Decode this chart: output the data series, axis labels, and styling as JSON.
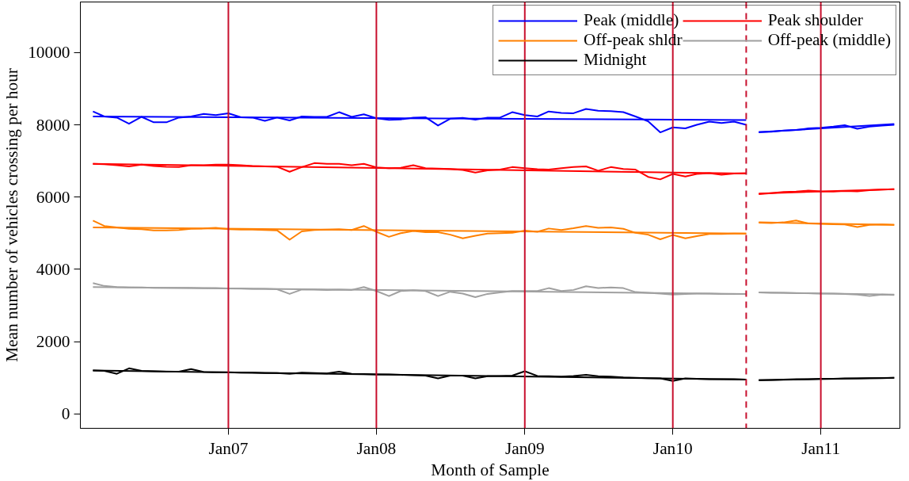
{
  "chart_data": {
    "type": "line",
    "xlabel": "Month of Sample",
    "ylabel": "Mean number of vehicles crossing per hour",
    "xlim": [
      "2006-01-01",
      "2011-07-15"
    ],
    "ylim": [
      -400,
      11400
    ],
    "xticks": [
      {
        "value": "2007-01",
        "label": "Jan07"
      },
      {
        "value": "2008-01",
        "label": "Jan08"
      },
      {
        "value": "2009-01",
        "label": "Jan09"
      },
      {
        "value": "2010-01",
        "label": "Jan10"
      },
      {
        "value": "2011-01",
        "label": "Jan11"
      }
    ],
    "yticks": [
      0,
      2000,
      4000,
      6000,
      8000,
      10000
    ],
    "grid": false,
    "legend": "top right",
    "marker": "none",
    "line_style": "solid",
    "ref_lines": [
      {
        "axis": "x",
        "value": "2007-01",
        "color": "#c8102e",
        "line_style": "solid"
      },
      {
        "axis": "x",
        "value": "2008-01",
        "color": "#c8102e",
        "line_style": "solid"
      },
      {
        "axis": "x",
        "value": "2009-01",
        "color": "#c8102e",
        "line_style": "solid"
      },
      {
        "axis": "x",
        "value": "2010-01",
        "color": "#c8102e",
        "line_style": "solid"
      },
      {
        "axis": "x",
        "value": "2010-07",
        "color": "#c8102e",
        "line_style": "dashed"
      },
      {
        "axis": "x",
        "value": "2011-01",
        "color": "#c8102e",
        "line_style": "solid"
      }
    ],
    "series": [
      {
        "name": "Peak (middle)",
        "color": "#0000ff",
        "values": [
          8370,
          8230,
          8200,
          8030,
          8220,
          8070,
          8070,
          8200,
          8230,
          8300,
          8270,
          8320,
          8210,
          8200,
          8110,
          8200,
          8120,
          8230,
          8220,
          8220,
          8350,
          8220,
          8290,
          8180,
          8140,
          8150,
          8200,
          8210,
          7980,
          8170,
          8190,
          8140,
          8200,
          8200,
          8350,
          8270,
          8230,
          8370,
          8330,
          8320,
          8440,
          8390,
          8380,
          8350,
          8230,
          8100,
          7790,
          7930,
          7900,
          8000,
          8090,
          8050,
          8090,
          8000
        ]
      },
      {
        "name": "Peak shoulder",
        "color": "#ff0000",
        "values": [
          6920,
          6910,
          6880,
          6850,
          6900,
          6860,
          6840,
          6830,
          6880,
          6880,
          6900,
          6900,
          6880,
          6860,
          6850,
          6840,
          6700,
          6830,
          6940,
          6920,
          6920,
          6880,
          6920,
          6820,
          6800,
          6810,
          6880,
          6800,
          6790,
          6780,
          6750,
          6680,
          6740,
          6760,
          6830,
          6800,
          6770,
          6760,
          6800,
          6830,
          6850,
          6730,
          6830,
          6780,
          6760,
          6560,
          6490,
          6640,
          6570,
          6640,
          6660,
          6620,
          6650,
          6660
        ]
      },
      {
        "name": "Off-peak shldr",
        "color": "#ff8000",
        "values": [
          5350,
          5200,
          5160,
          5120,
          5110,
          5080,
          5080,
          5090,
          5120,
          5130,
          5150,
          5110,
          5100,
          5100,
          5090,
          5080,
          4820,
          5050,
          5090,
          5100,
          5110,
          5090,
          5200,
          5040,
          4900,
          5000,
          5060,
          5030,
          5030,
          4960,
          4860,
          4930,
          4990,
          5000,
          5010,
          5070,
          5040,
          5130,
          5090,
          5140,
          5200,
          5150,
          5160,
          5120,
          5010,
          4960,
          4830,
          4950,
          4860,
          4920,
          4980,
          4980,
          4990,
          4990
        ]
      },
      {
        "name": "Off-peak (middle)",
        "color": "#a0a0a0",
        "values": [
          3620,
          3540,
          3510,
          3500,
          3500,
          3490,
          3490,
          3490,
          3490,
          3480,
          3480,
          3470,
          3470,
          3460,
          3460,
          3450,
          3320,
          3440,
          3440,
          3430,
          3440,
          3430,
          3510,
          3400,
          3260,
          3400,
          3420,
          3400,
          3260,
          3380,
          3330,
          3230,
          3320,
          3360,
          3400,
          3400,
          3400,
          3480,
          3400,
          3430,
          3530,
          3480,
          3500,
          3480,
          3370,
          3350,
          3330,
          3300,
          3320,
          3330,
          3330,
          3320,
          3320,
          3320
        ]
      },
      {
        "name": "Midnight",
        "color": "#000000",
        "values": [
          1200,
          1190,
          1110,
          1260,
          1190,
          1180,
          1170,
          1170,
          1240,
          1160,
          1150,
          1150,
          1140,
          1140,
          1130,
          1130,
          1110,
          1140,
          1130,
          1120,
          1170,
          1110,
          1100,
          1090,
          1090,
          1080,
          1070,
          1060,
          980,
          1060,
          1060,
          980,
          1040,
          1050,
          1060,
          1180,
          1050,
          1040,
          1030,
          1050,
          1080,
          1040,
          1030,
          1010,
          1000,
          990,
          980,
          910,
          980,
          970,
          960,
          960,
          960,
          950
        ]
      },
      {
        "color": "#0000ff",
        "x": [
          "2010-08",
          "2010-09",
          "2010-10",
          "2010-11",
          "2010-12",
          "2011-01",
          "2011-02",
          "2011-03",
          "2011-04",
          "2011-05",
          "2011-06",
          "2011-07"
        ],
        "values": [
          7800,
          7810,
          7840,
          7860,
          7900,
          7920,
          7950,
          7990,
          7890,
          7950,
          7980,
          8000
        ]
      },
      {
        "color": "#ff0000",
        "x": [
          "2010-08",
          "2010-09",
          "2010-10",
          "2010-11",
          "2010-12",
          "2011-01",
          "2011-02",
          "2011-03",
          "2011-04",
          "2011-05",
          "2011-06",
          "2011-07"
        ],
        "values": [
          6080,
          6110,
          6140,
          6150,
          6180,
          6160,
          6150,
          6170,
          6160,
          6190,
          6210,
          6220
        ]
      },
      {
        "color": "#ff8000",
        "x": [
          "2010-08",
          "2010-09",
          "2010-10",
          "2010-11",
          "2010-12",
          "2011-01",
          "2011-02",
          "2011-03",
          "2011-04",
          "2011-05",
          "2011-06",
          "2011-07"
        ],
        "values": [
          5290,
          5280,
          5300,
          5350,
          5270,
          5260,
          5250,
          5240,
          5170,
          5230,
          5240,
          5230
        ]
      },
      {
        "color": "#a0a0a0",
        "x": [
          "2010-08",
          "2010-09",
          "2010-10",
          "2010-11",
          "2010-12",
          "2011-01",
          "2011-02",
          "2011-03",
          "2011-04",
          "2011-05",
          "2011-06",
          "2011-07"
        ],
        "values": [
          3360,
          3350,
          3350,
          3340,
          3340,
          3330,
          3330,
          3320,
          3300,
          3260,
          3300,
          3290
        ]
      },
      {
        "color": "#000000",
        "x": [
          "2010-08",
          "2010-09",
          "2010-10",
          "2010-11",
          "2010-12",
          "2011-01",
          "2011-02",
          "2011-03",
          "2011-04",
          "2011-05",
          "2011-06",
          "2011-07"
        ],
        "values": [
          930,
          940,
          950,
          960,
          960,
          970,
          970,
          980,
          980,
          990,
          990,
          1000
        ]
      },
      {
        "color": "#0000ff",
        "x": [
          "2006-02",
          "2010-07"
        ],
        "values": [
          8230,
          8130
        ]
      },
      {
        "color": "#0000ff",
        "x": [
          "2010-08",
          "2011-07"
        ],
        "values": [
          7800,
          8020
        ]
      },
      {
        "color": "#ff0000",
        "x": [
          "2006-02",
          "2010-07"
        ],
        "values": [
          6920,
          6650
        ]
      },
      {
        "color": "#ff0000",
        "x": [
          "2010-08",
          "2011-07"
        ],
        "values": [
          6100,
          6220
        ]
      },
      {
        "color": "#ff8000",
        "x": [
          "2006-02",
          "2010-07"
        ],
        "values": [
          5160,
          4990
        ]
      },
      {
        "color": "#ff8000",
        "x": [
          "2010-08",
          "2011-07"
        ],
        "values": [
          5300,
          5230
        ]
      },
      {
        "color": "#a0a0a0",
        "x": [
          "2006-02",
          "2010-07"
        ],
        "values": [
          3510,
          3320
        ]
      },
      {
        "color": "#a0a0a0",
        "x": [
          "2010-08",
          "2011-07"
        ],
        "values": [
          3360,
          3300
        ]
      },
      {
        "color": "#000000",
        "x": [
          "2006-02",
          "2010-07"
        ],
        "values": [
          1200,
          950
        ]
      },
      {
        "color": "#000000",
        "x": [
          "2010-08",
          "2011-07"
        ],
        "values": [
          930,
          1000
        ]
      }
    ],
    "x": [
      "2006-02",
      "2006-03",
      "2006-04",
      "2006-05",
      "2006-06",
      "2006-07",
      "2006-08",
      "2006-09",
      "2006-10",
      "2006-11",
      "2006-12",
      "2007-01",
      "2007-02",
      "2007-03",
      "2007-04",
      "2007-05",
      "2007-06",
      "2007-07",
      "2007-08",
      "2007-09",
      "2007-10",
      "2007-11",
      "2007-12",
      "2008-01",
      "2008-02",
      "2008-03",
      "2008-04",
      "2008-05",
      "2008-06",
      "2008-07",
      "2008-08",
      "2008-09",
      "2008-10",
      "2008-11",
      "2008-12",
      "2009-01",
      "2009-02",
      "2009-03",
      "2009-04",
      "2009-05",
      "2009-06",
      "2009-07",
      "2009-08",
      "2009-09",
      "2009-10",
      "2009-11",
      "2009-12",
      "2010-01",
      "2010-02",
      "2010-03",
      "2010-04",
      "2010-05",
      "2010-06",
      "2010-07"
    ]
  }
}
